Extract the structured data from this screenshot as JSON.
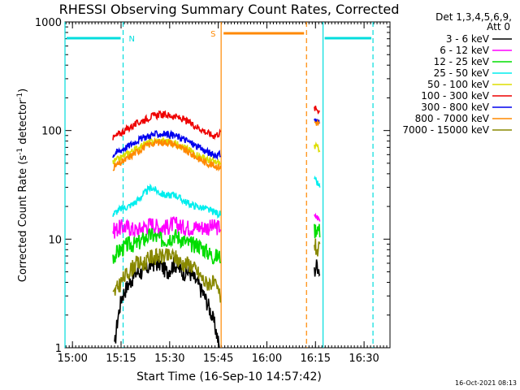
{
  "chart_data": {
    "type": "line",
    "title": "RHESSI Observing Summary Count Rates, Corrected",
    "xlabel": "Start Time (16-Sep-10 14:57:42)",
    "ylabel_main": "Corrected Count Rate (s",
    "ylabel_sup1": "-1",
    "ylabel_mid": " detector",
    "ylabel_sup2": "-1",
    "ylabel_end": ")",
    "y_scale": "log",
    "xlim": [
      "14:57:42",
      "16:38:00"
    ],
    "ylim": [
      1,
      1000
    ],
    "x_ticks": [
      "15:00",
      "15:15",
      "15:30",
      "15:45",
      "16:00",
      "16:15",
      "16:30"
    ],
    "y_ticks": [
      "1",
      "10",
      "100",
      "1000"
    ],
    "legend_header": "Det 1,3,4,5,6,9,",
    "legend_header2": "Att 0",
    "legend_position": "right",
    "footer_date": "16-Oct-2021 08:13",
    "night_label": "N",
    "saa_label": "S",
    "markers": {
      "night_start": "15:15:38",
      "night_end": "16:32:45",
      "saa_start": "15:45:53",
      "saa_end": "16:12:14",
      "data_gap_1": "14:57:42",
      "data_gap_2": "16:17:20"
    },
    "series": [
      {
        "name": "3 - 6 keV",
        "color": "#000000",
        "segments": [
          {
            "start": "15:13:00",
            "end": "15:45:20",
            "values": [
              1,
              3,
              4,
              5,
              5,
              6,
              6,
              5,
              6,
              5,
              5,
              4,
              3,
              2,
              1
            ]
          },
          {
            "start": "16:14:40",
            "end": "16:16:20",
            "values": [
              5,
              6,
              5
            ]
          }
        ]
      },
      {
        "name": "6 - 12 keV",
        "color": "#ff00ff",
        "segments": [
          {
            "start": "15:12:30",
            "end": "15:45:40",
            "values": [
              12,
              13,
              13,
              12,
              13,
              14,
              13,
              13,
              14,
              13,
              13,
              13,
              13,
              13,
              13
            ]
          },
          {
            "start": "16:14:40",
            "end": "16:16:20",
            "values": [
              16,
              16,
              15
            ]
          }
        ]
      },
      {
        "name": "12 - 25 keV",
        "color": "#00dd00",
        "segments": [
          {
            "start": "15:12:30",
            "end": "15:45:40",
            "values": [
              7,
              8,
              9,
              9,
              10,
              11,
              10,
              10,
              11,
              10,
              9,
              9,
              8,
              7,
              7
            ]
          },
          {
            "start": "16:14:40",
            "end": "16:16:20",
            "values": [
              12,
              13,
              12
            ]
          }
        ]
      },
      {
        "name": "25 - 50 keV",
        "color": "#00eeee",
        "segments": [
          {
            "start": "15:12:30",
            "end": "15:45:40",
            "values": [
              17,
              19,
              20,
              22,
              26,
              30,
              27,
              25,
              26,
              23,
              21,
              20,
              19,
              18,
              17
            ]
          },
          {
            "start": "16:14:40",
            "end": "16:16:20",
            "values": [
              35,
              33,
              30
            ]
          }
        ]
      },
      {
        "name": "50 - 100 keV",
        "color": "#dddd00",
        "segments": [
          {
            "start": "15:12:30",
            "end": "15:45:40",
            "values": [
              51,
              56,
              62,
              68,
              74,
              79,
              80,
              80,
              77,
              72,
              66,
              60,
              55,
              52,
              50
            ]
          },
          {
            "start": "16:14:40",
            "end": "16:16:20",
            "values": [
              72,
              70,
              68
            ]
          }
        ]
      },
      {
        "name": "100 - 300 keV",
        "color": "#ee0000",
        "segments": [
          {
            "start": "15:12:30",
            "end": "15:45:40",
            "values": [
              85,
              95,
              105,
              115,
              125,
              135,
              140,
              140,
              135,
              128,
              118,
              108,
              98,
              90,
              95
            ]
          },
          {
            "start": "16:14:40",
            "end": "16:16:20",
            "values": [
              160,
              158,
              150
            ]
          }
        ]
      },
      {
        "name": "300 - 800 keV",
        "color": "#0000ee",
        "segments": [
          {
            "start": "15:12:30",
            "end": "15:45:40",
            "values": [
              60,
              66,
              72,
              80,
              86,
              91,
              93,
              93,
              90,
              85,
              78,
              71,
              65,
              60,
              60
            ]
          },
          {
            "start": "16:14:40",
            "end": "16:16:20",
            "values": [
              125,
              122,
              118
            ]
          }
        ]
      },
      {
        "name": "800 - 7000 keV",
        "color": "#ff8800",
        "segments": [
          {
            "start": "15:12:30",
            "end": "15:45:40",
            "values": [
              46,
              50,
              56,
              63,
              70,
              76,
              78,
              78,
              75,
              68,
              62,
              56,
              51,
              48,
              46
            ]
          },
          {
            "start": "16:14:40",
            "end": "16:16:20",
            "values": [
              120,
              118,
              115
            ]
          }
        ]
      },
      {
        "name": "7000 - 15000 keV",
        "color": "#888800",
        "segments": [
          {
            "start": "15:12:30",
            "end": "15:45:40",
            "values": [
              3,
              4,
              5,
              6,
              6,
              7,
              7,
              7,
              7,
              6,
              6,
              5,
              4,
              4,
              3
            ]
          },
          {
            "start": "16:14:40",
            "end": "16:16:20",
            "values": [
              9,
              8,
              8
            ]
          }
        ]
      }
    ]
  }
}
